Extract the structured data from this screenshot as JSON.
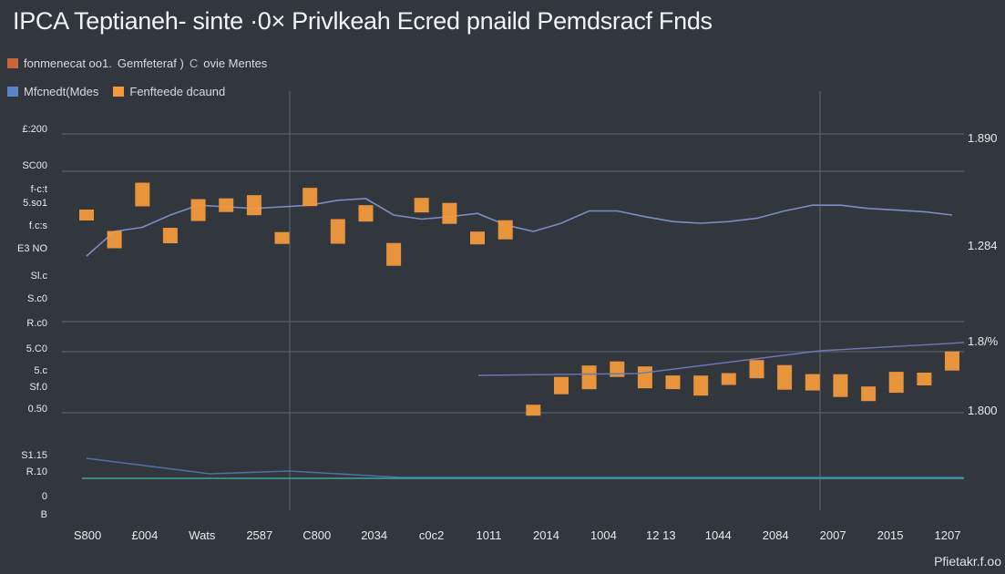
{
  "title": "IPCA Teptianeh- sinte ·0× Privlkeah Ecred pnaild Pemdsracf Fnds",
  "legend_row1": [
    "fonmenecat oo1.",
    "Gemfeteraf )",
    "C",
    "ovie Mentes"
  ],
  "legend_row2": [
    "Mfcnedt(Mdes",
    "Fenfteede dcaund"
  ],
  "corner_label": "Pfietakr.f.oo",
  "colors": {
    "background": "#32363d",
    "grid": "#5a5f68",
    "line": "#7a8dc4",
    "bars": "#f29a3c",
    "baseline": "#3fa3a0",
    "text": "#e8eaee"
  },
  "chart_data": {
    "type": "line",
    "title": "IPCA Teptianeh- sinte ·0× Privlkeah Ecred pnaild Pemdsracf Fnds",
    "xlabel": "",
    "ylabel": "",
    "x_tick_labels": [
      "S800",
      "£004",
      "Wats",
      "2587",
      "C800",
      "2034",
      "c0c2",
      "1011",
      "2014",
      "1004",
      "12 13",
      "1044",
      "2084",
      "2007",
      "2015",
      "1207"
    ],
    "y_tick_labels_left": [
      "£:200",
      "SC00",
      "f-c:t",
      "5.so1",
      "f.c:s",
      "E3 NO",
      "Sl.c",
      "S.c0",
      "R.c0",
      "5.C0",
      "5.c",
      "Sf.0",
      "0.50",
      "S1.15",
      "R.10",
      "0",
      "B"
    ],
    "y_tick_labels_right": [
      "1.890",
      "1.284",
      "1.8/%",
      "1.800"
    ],
    "grid": true,
    "legend_position": "top-left",
    "series": [
      {
        "name": "fonmenecat oo1.",
        "values": [
          310,
          340,
          345,
          360,
          372,
          370,
          368,
          370,
          372,
          378,
          380,
          360,
          355,
          358,
          362,
          348,
          340,
          350,
          365,
          365,
          358,
          352,
          350,
          352,
          356,
          365,
          372,
          372,
          368,
          366,
          364,
          360
        ]
      },
      {
        "name": "Fenfteede dcaund",
        "values": [
          360,
          330,
          385,
          335,
          366,
          372,
          372,
          332,
          382,
          340,
          362,
          312,
          372,
          362,
          332,
          342,
          322,
          352,
          362,
          372,
          362,
          356,
          352,
          360,
          372,
          362,
          356,
          352,
          342,
          356,
          360,
          382
        ]
      },
      {
        "name": "C",
        "values": [
          150,
          148,
          146,
          145,
          144,
          144,
          143,
          142,
          142,
          142,
          141,
          141,
          140,
          140,
          140,
          140,
          140,
          140,
          140,
          140,
          140,
          140,
          140,
          140,
          140,
          140,
          140,
          140,
          140,
          140,
          140,
          140
        ]
      }
    ]
  }
}
